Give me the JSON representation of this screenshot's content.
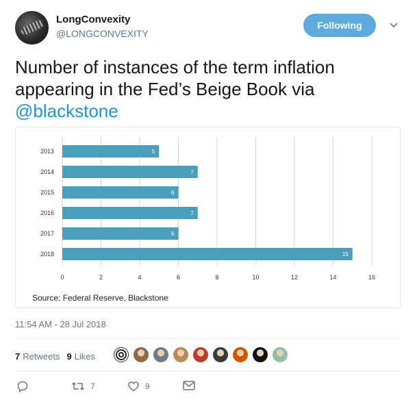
{
  "user": {
    "display_name": "LongConvexity",
    "handle": "@LONGCONVEXITY",
    "follow_label": "Following"
  },
  "tweet": {
    "text_before": "Number of instances of the term inflation appearing in the Fed’s Beige Book via ",
    "mention": "@blackstone",
    "timestamp": "11:54 AM - 28 Jul 2018"
  },
  "stats": {
    "retweets_count": "7",
    "retweets_label": "Retweets",
    "likes_count": "9",
    "likes_label": "Likes"
  },
  "actions": {
    "retweet_count": "7",
    "like_count": "9"
  },
  "likers": [
    {
      "icon": "avatar-spiral",
      "color": "#2b2b2b"
    },
    {
      "icon": "avatar-portrait",
      "color": "#8a6a4a"
    },
    {
      "icon": "avatar-portrait",
      "color": "#6f7d86"
    },
    {
      "icon": "avatar-portrait",
      "color": "#b88a5a"
    },
    {
      "icon": "avatar-portrait",
      "color": "#c0392b"
    },
    {
      "icon": "avatar-portrait",
      "color": "#3a3a3a"
    },
    {
      "icon": "avatar-portrait",
      "color": "#d35400"
    },
    {
      "icon": "avatar-logo",
      "color": "#111111"
    },
    {
      "icon": "avatar-portrait",
      "color": "#8fbfa8"
    }
  ],
  "colors": {
    "bar": "#4aa0bc",
    "follow": "#5ea9dd",
    "mention": "#1b95e0"
  },
  "chart_data": {
    "type": "bar",
    "orientation": "horizontal",
    "categories": [
      "2013",
      "2014",
      "2015",
      "2016",
      "2017",
      "2018"
    ],
    "values": [
      5,
      7,
      6,
      7,
      6,
      15
    ],
    "data_labels": [
      "5",
      "7",
      "6",
      "7",
      "6",
      "15"
    ],
    "xlim": [
      0,
      16
    ],
    "xticks": [
      "0",
      "2",
      "4",
      "6",
      "8",
      "10",
      "12",
      "14",
      "16"
    ],
    "grid": "vertical",
    "title": "",
    "xlabel": "",
    "ylabel": "",
    "source": "Source: Federal Reserve, Blackstone"
  }
}
